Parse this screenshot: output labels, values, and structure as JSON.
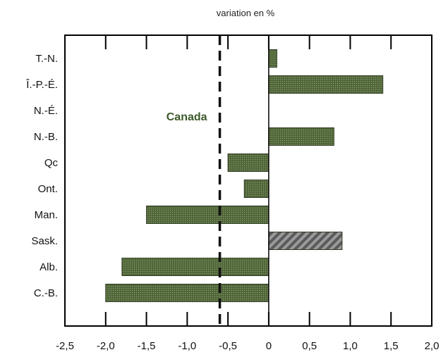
{
  "chart_data": {
    "type": "bar",
    "orientation": "horizontal",
    "title": "variation en %",
    "categories": [
      "T.-N.",
      "Î.-P.-É.",
      "N.-É.",
      "N.-B.",
      "Qc",
      "Ont.",
      "Man.",
      "Sask.",
      "Alb.",
      "C.-B."
    ],
    "values": [
      0.1,
      1.4,
      0.0,
      0.8,
      -0.5,
      -0.3,
      -1.5,
      0.9,
      -1.8,
      -2.0
    ],
    "xlim": [
      -2.5,
      2.0
    ],
    "xticks": [
      "-2,5",
      "-2,0",
      "-1,5",
      "-1,0",
      "-0,5",
      "0",
      "0,5",
      "1,0",
      "1,5",
      "2,0"
    ],
    "reference_line": {
      "label": "Canada",
      "value": -0.6,
      "style": "dashed"
    },
    "grid": false,
    "colors": {
      "bar": "#556b3e",
      "bar_hatched": "#8a8a8a",
      "frame": "#000000"
    }
  }
}
